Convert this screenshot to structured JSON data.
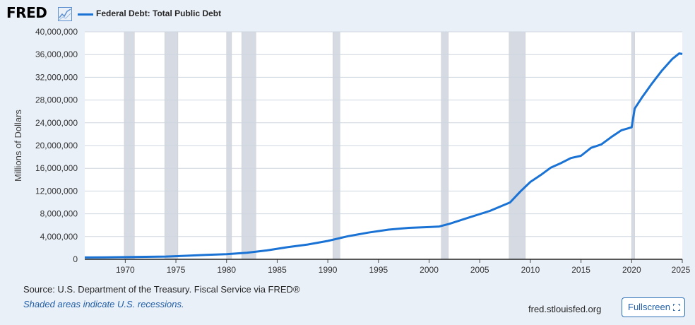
{
  "header": {
    "logo": "FRED",
    "logo_icon": "trend-chart-icon",
    "series_label": "Federal Debt: Total Public Debt"
  },
  "footer": {
    "source": "Source: U.S. Department of the Treasury. Fiscal Service via FRED®",
    "recession_note": "Shaded areas indicate U.S. recessions.",
    "site": "fred.stlouisfed.org",
    "fullscreen_label": "Fullscreen",
    "fullscreen_icon": "expand-corners-icon"
  },
  "colors": {
    "line": "#1a73d4",
    "recession": "#d6dae2",
    "grid": "#cfd6df",
    "background": "#eaf0f8",
    "plot": "#ffffff"
  },
  "chart_data": {
    "type": "line",
    "title": "Federal Debt: Total Public Debt",
    "ylabel": "Millions of Dollars",
    "xlabel": "",
    "xlim": [
      1966,
      2025
    ],
    "ylim": [
      0,
      40000000
    ],
    "x_ticks": [
      1970,
      1975,
      1980,
      1985,
      1990,
      1995,
      2000,
      2005,
      2010,
      2015,
      2020,
      2025
    ],
    "y_ticks": [
      0,
      4000000,
      8000000,
      12000000,
      16000000,
      20000000,
      24000000,
      28000000,
      32000000,
      36000000,
      40000000
    ],
    "y_tick_labels": [
      "0",
      "4,000,000",
      "8,000,000",
      "12,000,000",
      "16,000,000",
      "20,000,000",
      "24,000,000",
      "28,000,000",
      "32,000,000",
      "36,000,000",
      "40,000,000"
    ],
    "grid": true,
    "recessions": [
      [
        1969.9,
        1970.9
      ],
      [
        1973.9,
        1975.2
      ],
      [
        1980.0,
        1980.5
      ],
      [
        1981.5,
        1982.9
      ],
      [
        1990.5,
        1991.2
      ],
      [
        2001.2,
        2001.9
      ],
      [
        2007.9,
        2009.5
      ],
      [
        2020.0,
        2020.3
      ]
    ],
    "series": [
      {
        "name": "Federal Debt: Total Public Debt",
        "x": [
          1966,
          1968,
          1970,
          1972,
          1974,
          1976,
          1978,
          1980,
          1982,
          1984,
          1986,
          1988,
          1990,
          1992,
          1994,
          1996,
          1998,
          2000,
          2001,
          2002,
          2004,
          2006,
          2008,
          2009,
          2010,
          2011,
          2012,
          2013,
          2014,
          2015,
          2016,
          2017,
          2018,
          2019,
          2020,
          2020.3,
          2021,
          2022,
          2023,
          2024,
          2024.7,
          2025
        ],
        "y": [
          320000,
          350000,
          380000,
          430000,
          480000,
          620000,
          780000,
          910000,
          1140000,
          1570000,
          2120000,
          2600000,
          3230000,
          4060000,
          4690000,
          5220000,
          5530000,
          5670000,
          5770000,
          6230000,
          7380000,
          8510000,
          10000000,
          11900000,
          13600000,
          14800000,
          16100000,
          16900000,
          17800000,
          18200000,
          19600000,
          20200000,
          21500000,
          22700000,
          23200000,
          26500000,
          28400000,
          30900000,
          33200000,
          35200000,
          36200000,
          36100000
        ]
      }
    ]
  }
}
